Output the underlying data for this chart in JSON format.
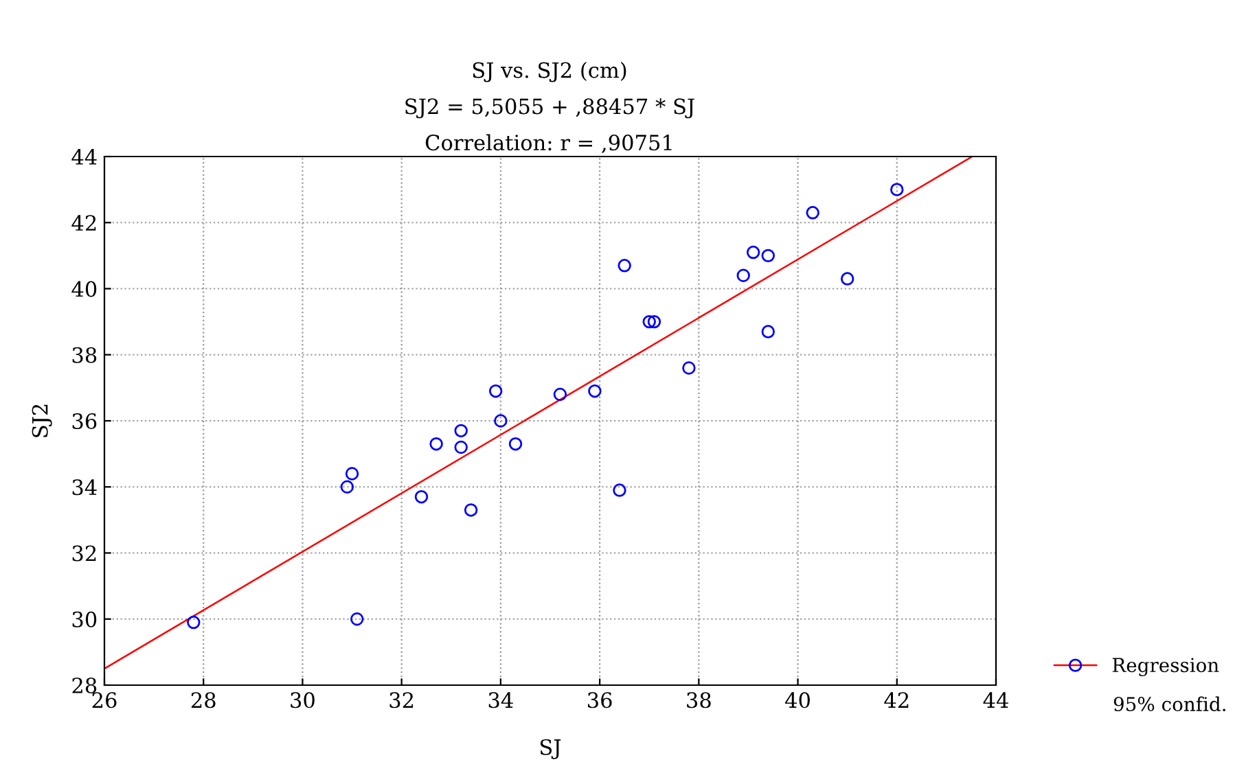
{
  "chart_data": {
    "type": "scatter",
    "title": "SJ vs. SJ2 (cm)",
    "subtitle": "SJ2 = 5,5055 + ,88457 * SJ\nCorrelation: r = ,90751",
    "xlabel": "SJ",
    "ylabel": "SJ2",
    "series": [
      {
        "marker": "circle",
        "color": "#0000ff",
        "x": [
          27.8,
          31.1,
          30.9,
          31.0,
          32.4,
          32.7,
          33.2,
          33.2,
          33.4,
          33.9,
          34.0,
          34.3,
          35.2,
          35.9,
          36.4,
          36.5,
          37.0,
          37.1,
          37.8,
          38.9,
          39.1,
          39.4,
          39.4,
          40.3,
          41.0,
          42.0
        ],
        "values": [
          29.9,
          30.0,
          34.0,
          34.4,
          33.7,
          35.3,
          35.7,
          35.2,
          33.3,
          36.9,
          36.0,
          35.3,
          36.8,
          36.9,
          33.9,
          40.7,
          39.0,
          39.0,
          37.6,
          40.4,
          41.1,
          41.0,
          38.7,
          42.3,
          40.3,
          43.0
        ]
      },
      {
        "type": "line",
        "name": "Regression",
        "color": "#ff0000",
        "x": [
          26,
          43.52
        ],
        "values": [
          28.5,
          44.0
        ],
        "marker": "none"
      }
    ],
    "annotations": [
      "95% confid."
    ],
    "xlim": [
      26,
      44
    ],
    "ylim": [
      28,
      44
    ],
    "xticks": [
      26,
      28,
      30,
      32,
      34,
      36,
      38,
      40,
      42,
      44
    ],
    "yticks": [
      28,
      30,
      32,
      34,
      36,
      38,
      40,
      42,
      44
    ],
    "grid": true,
    "legend": "bottom right",
    "line_style": "solid"
  }
}
